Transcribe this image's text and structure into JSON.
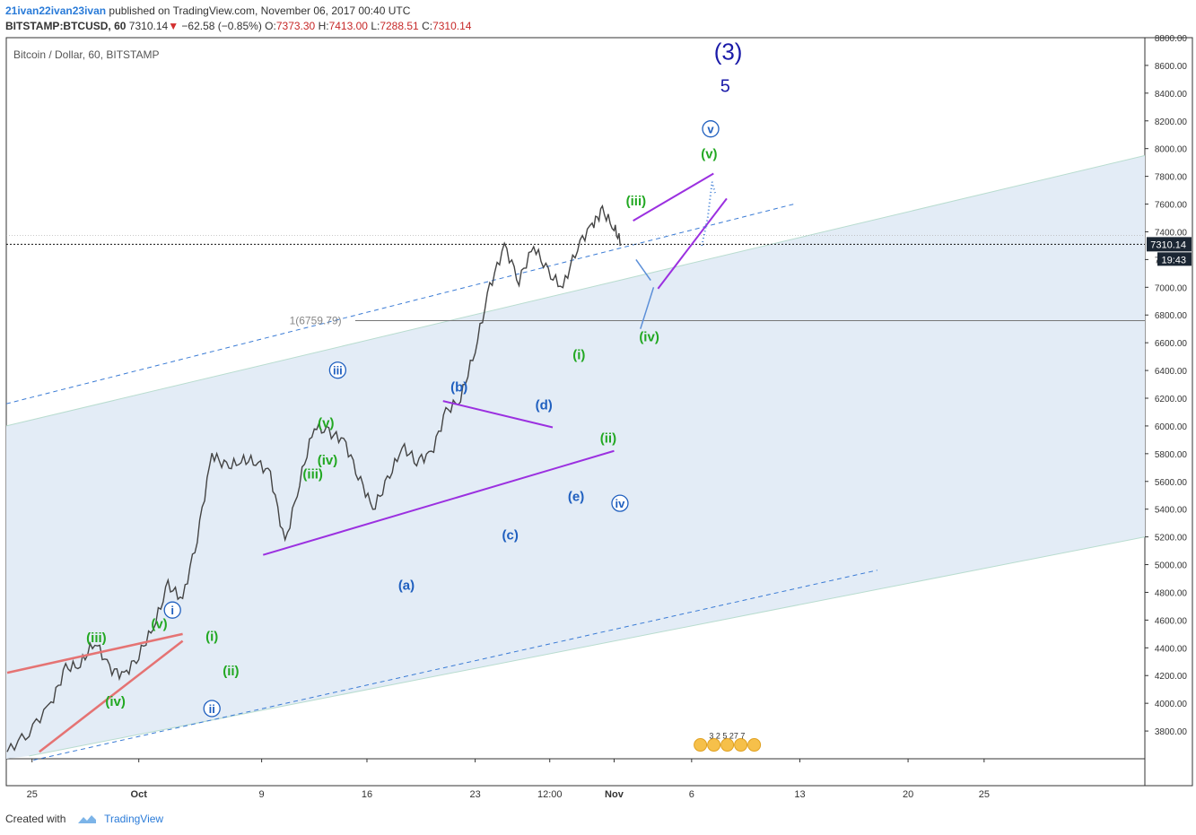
{
  "header": {
    "author": "21ivan22ivan23ivan",
    "published_text": "published on TradingView.com, November 06, 2017 00:40 UTC",
    "symbol": "BITSTAMP:BTCUSD, 60",
    "last": "7310.14",
    "change_arrow": "▼",
    "change": "−62.58 (−0.85%)",
    "open_label": "O:",
    "open": "7373.30",
    "high_label": "H:",
    "high": "7413.00",
    "low_label": "L:",
    "low": "7288.51",
    "close_label": "C:",
    "close": "7310.14"
  },
  "footer": {
    "created_with": "Created with",
    "brand": "TradingView"
  },
  "colors": {
    "channel_fill": "#e3ecf6",
    "channel_line": "#b8dccf",
    "dashed_blue": "#3a7bd5",
    "purple": "#9b30e0",
    "salmon": "#e57373",
    "green_label": "#22a822",
    "blue_label": "#1f5fbf",
    "navy_label": "#1a1aa8",
    "candle": "#444444"
  },
  "chart_data": {
    "type": "line",
    "title": "Bitcoin / Dollar, 60, BITSTAMP",
    "ylim": [
      3600,
      8800
    ],
    "y_ticks": [
      "8800.00",
      "8600.00",
      "8400.00",
      "8200.00",
      "8000.00",
      "7800.00",
      "7600.00",
      "7400.00",
      "7200.00",
      "7000.00",
      "6800.00",
      "6600.00",
      "6400.00",
      "6200.00",
      "6000.00",
      "5800.00",
      "5600.00",
      "5400.00",
      "5200.00",
      "5000.00",
      "4800.00",
      "4600.00",
      "4400.00",
      "4200.00",
      "4000.00",
      "3800.00"
    ],
    "x_ticks": [
      "25",
      "Oct",
      "9",
      "16",
      "23",
      "12:00",
      "Nov",
      "6",
      "13",
      "20",
      "25"
    ],
    "price_tag": "7310.14",
    "countdown": "19:43",
    "fib_label": "1(6759.79)",
    "fib_level": 6759.79,
    "series": [
      {
        "values_t": [
          0.0,
          1.5,
          3.0,
          4.0,
          5.0,
          6.0,
          7.0,
          8.0,
          9.0,
          10.0,
          11.0,
          12.0,
          13.0,
          14.0,
          15.0,
          16.0,
          17.0,
          18.0,
          19.0,
          20.0,
          21.0,
          22.0,
          23.0,
          24.0,
          25.0,
          26.0,
          27.0,
          28.0,
          29.0,
          30.0,
          31.0,
          32.0,
          33.0,
          34.0,
          35.0,
          36.0,
          37.0,
          38.0,
          39.0,
          40.0,
          40.7,
          41.5,
          42.0
        ],
        "values": [
          3650,
          3800,
          4000,
          4250,
          4280,
          4450,
          4250,
          4200,
          4350,
          4550,
          4850,
          4750,
          5200,
          5800,
          5700,
          5750,
          5750,
          5650,
          5150,
          5600,
          6000,
          5950,
          5900,
          5650,
          5400,
          5600,
          5850,
          5750,
          5800,
          6100,
          6200,
          6550,
          7000,
          7300,
          7050,
          7300,
          7100,
          7000,
          7300,
          7450,
          7550,
          7430,
          7310
        ]
      }
    ],
    "annotations": {
      "wave_3": "(3)",
      "wave_5": "5",
      "circled": [
        "i",
        "ii",
        "iii",
        "iv",
        "v"
      ],
      "green": [
        "(iii)",
        "(v)",
        "(iv)",
        "(i)",
        "(ii)",
        "(v)",
        "(iii)",
        "(iv)",
        "(i)",
        "(ii)",
        "(iii)",
        "(iv)",
        "(v)"
      ],
      "blue": [
        "(a)",
        "(b)",
        "(c)",
        "(d)",
        "(e)"
      ]
    },
    "events_text": "3 2 5 27 7"
  }
}
